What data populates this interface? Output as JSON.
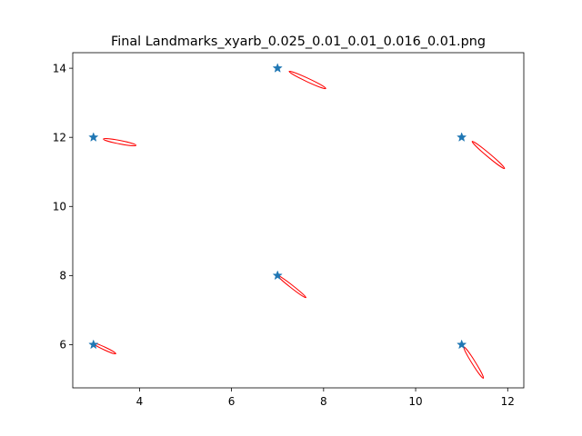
{
  "chart_data": {
    "type": "scatter",
    "title": "Final Landmarks_xyarb_0.025_0.01_0.01_0.016_0.01.png",
    "xlabel": "",
    "ylabel": "",
    "xlim": [
      2.55,
      12.35
    ],
    "ylim": [
      4.75,
      14.45
    ],
    "xticks": [
      "4",
      "6",
      "8",
      "10",
      "12"
    ],
    "yticks": [
      "6",
      "8",
      "10",
      "12",
      "14"
    ],
    "grid": false,
    "legend": "none",
    "series": [
      {
        "marker": "star",
        "color": "#1f77b4",
        "points": [
          {
            "x": 3,
            "y": 6
          },
          {
            "x": 3,
            "y": 12
          },
          {
            "x": 7,
            "y": 8
          },
          {
            "x": 7,
            "y": 14
          },
          {
            "x": 11,
            "y": 6
          },
          {
            "x": 11,
            "y": 12
          }
        ]
      }
    ],
    "ellipses": {
      "color": "#ff0000",
      "items": [
        {
          "cx": 3.24,
          "cy": 5.89,
          "rx": 0.27,
          "ry": 0.04,
          "angle_deg": -25
        },
        {
          "cx": 3.57,
          "cy": 11.86,
          "rx": 0.36,
          "ry": 0.05,
          "angle_deg": -11
        },
        {
          "cx": 7.31,
          "cy": 7.68,
          "rx": 0.39,
          "ry": 0.04,
          "angle_deg": -38
        },
        {
          "cx": 7.65,
          "cy": 13.66,
          "rx": 0.44,
          "ry": 0.05,
          "angle_deg": -25
        },
        {
          "cx": 11.26,
          "cy": 5.48,
          "rx": 0.4,
          "ry": 0.05,
          "angle_deg": -58
        },
        {
          "cx": 11.58,
          "cy": 11.49,
          "rx": 0.46,
          "ry": 0.05,
          "angle_deg": -40
        }
      ]
    }
  }
}
